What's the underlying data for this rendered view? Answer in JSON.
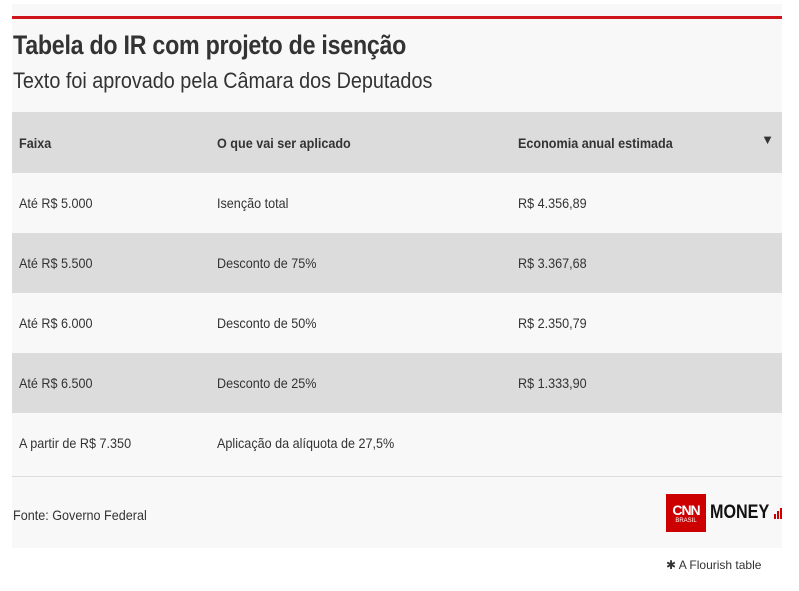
{
  "header": {
    "title": "Tabela do IR com projeto de isenção",
    "subtitle": "Texto foi aprovado pela Câmara dos Deputados"
  },
  "table": {
    "columns": [
      "Faixa",
      "O que vai ser aplicado",
      "Economia anual estimada"
    ],
    "sort_icon": "▼",
    "rows": [
      [
        "Até R$ 5.000",
        "Isenção total",
        "R$ 4.356,89"
      ],
      [
        "Até R$ 5.500",
        "Desconto de 75%",
        "R$ 3.367,68"
      ],
      [
        "Até R$ 6.000",
        "Desconto de 50%",
        "R$ 2.350,79"
      ],
      [
        "Até R$ 6.500",
        "Desconto de 25%",
        "R$ 1.333,90"
      ],
      [
        "A partir de R$ 7.350",
        "Aplicação da alíquota de 27,5%",
        ""
      ]
    ]
  },
  "footer": {
    "source": "Fonte: Governo Federal",
    "logo_cnn": "CNN",
    "logo_brasil": "BRASIL",
    "logo_money": "MONEY"
  },
  "credit": {
    "icon": "✱",
    "text": "A Flourish table"
  },
  "colors": {
    "accent": "#d0141c",
    "row_alt": "#dcdcdc"
  }
}
